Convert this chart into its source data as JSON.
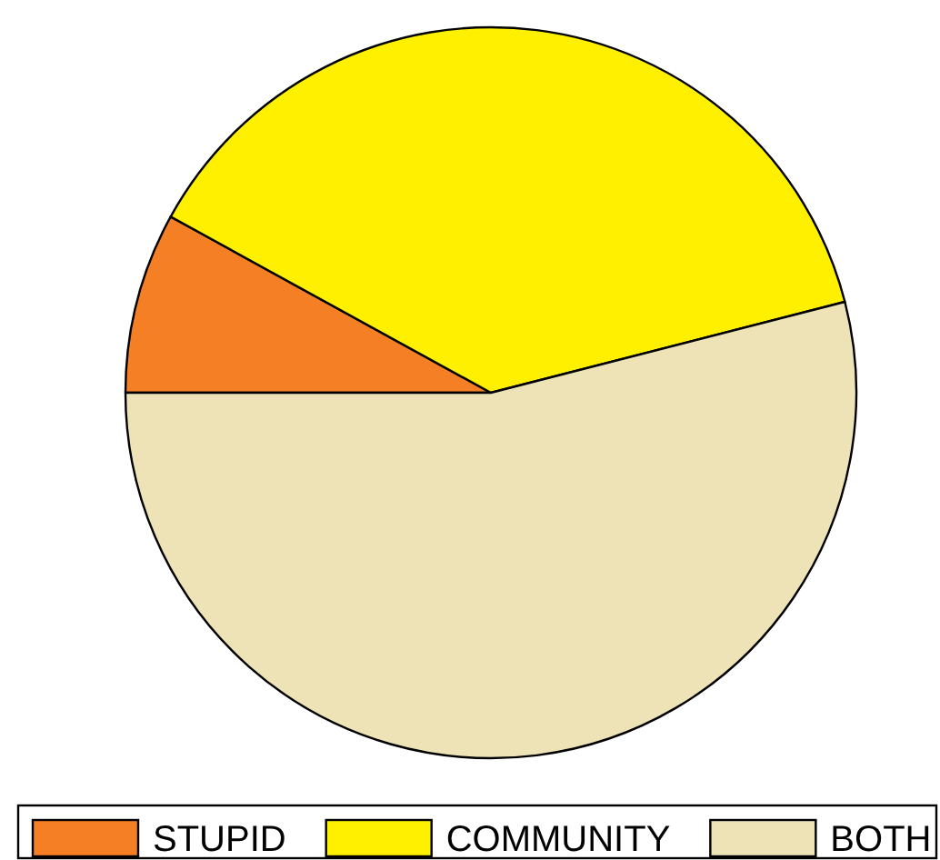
{
  "chart_data": {
    "type": "pie",
    "categories": [
      "STUPID",
      "COMMUNITY",
      "BOTH"
    ],
    "values": [
      8,
      38,
      54
    ],
    "colors": [
      "#f47f24",
      "#fff000",
      "#ede3b6"
    ],
    "legend": "bottom"
  }
}
